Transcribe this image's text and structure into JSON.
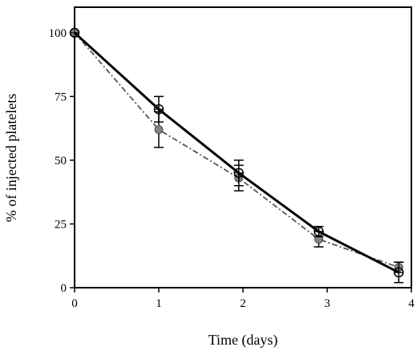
{
  "chart_data": {
    "type": "line",
    "xlabel": "Time (days)",
    "ylabel": "% of injected platelets",
    "xlim": [
      0,
      4
    ],
    "ylim": [
      0,
      110
    ],
    "x_ticks": [
      0,
      1,
      2,
      3,
      4
    ],
    "y_ticks": [
      0,
      25,
      50,
      75,
      100
    ],
    "grid": false,
    "legend": "none",
    "series": [
      {
        "style": "solid",
        "marker": "open-circle-cross",
        "color": "#000000",
        "x": [
          0,
          1,
          1.95,
          2.9,
          3.85
        ],
        "y": [
          100,
          70,
          45,
          22,
          6
        ],
        "error": [
          0,
          5,
          5,
          2,
          4
        ]
      },
      {
        "style": "dash-dot",
        "marker": "filled-dotted-circle",
        "color": "#555555",
        "x": [
          0,
          1,
          1.95,
          2.9,
          3.85
        ],
        "y": [
          100,
          62,
          43,
          19,
          8
        ],
        "error": [
          0,
          7,
          5,
          3,
          2
        ]
      }
    ]
  }
}
